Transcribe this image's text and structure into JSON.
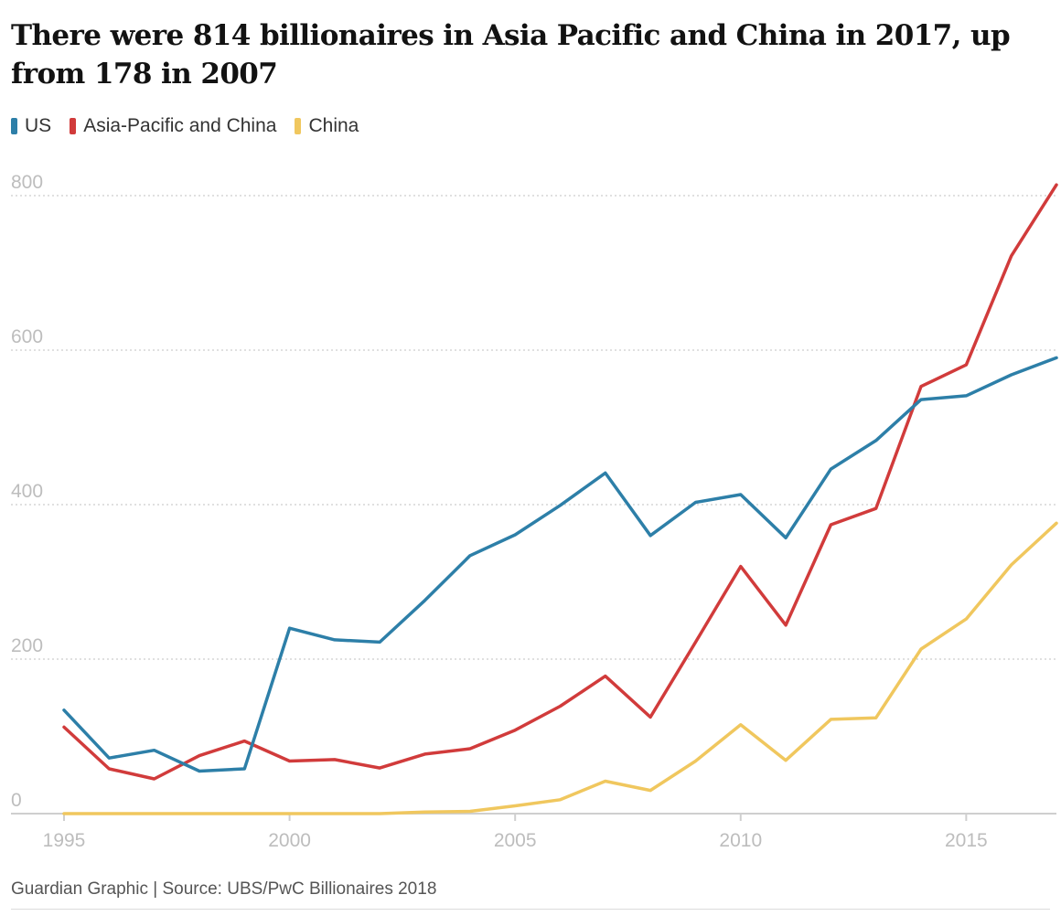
{
  "title": "There were 814 billionaires in Asia Pacific and China in 2017, up from 178 in 2007",
  "source": "Guardian Graphic | Source: UBS/PwC Billionaires 2018",
  "chart_data": {
    "type": "line",
    "title": "There were 814 billionaires in Asia Pacific and China in 2017, up from 178 in 2007",
    "xlabel": "",
    "ylabel": "",
    "x": [
      1995,
      1996,
      1997,
      1998,
      1999,
      2000,
      2001,
      2002,
      2003,
      2004,
      2005,
      2006,
      2007,
      2008,
      2009,
      2010,
      2011,
      2012,
      2013,
      2014,
      2015,
      2016,
      2017
    ],
    "xlim": [
      1995,
      2017
    ],
    "ylim": [
      0,
      800
    ],
    "xticks": [
      1995,
      2000,
      2005,
      2010,
      2015
    ],
    "yticks": [
      0,
      200,
      400,
      600,
      800
    ],
    "grid": "horizontal dotted",
    "legend": "top-left",
    "series": [
      {
        "name": "US",
        "color": "#2d7fa8",
        "values": [
          134,
          72,
          82,
          55,
          58,
          240,
          225,
          222,
          276,
          334,
          361,
          399,
          441,
          360,
          403,
          413,
          357,
          446,
          483,
          536,
          541,
          568,
          590
        ]
      },
      {
        "name": "Asia-Pacific and China",
        "color": "#d13b3b",
        "values": [
          112,
          58,
          45,
          75,
          94,
          68,
          70,
          59,
          77,
          84,
          108,
          139,
          178,
          125,
          222,
          320,
          244,
          374,
          395,
          553,
          581,
          722,
          814
        ]
      },
      {
        "name": "China",
        "color": "#f0c75e",
        "values": [
          0,
          0,
          0,
          0,
          0,
          0,
          0,
          0,
          2,
          3,
          10,
          18,
          42,
          30,
          68,
          115,
          69,
          122,
          124,
          213,
          252,
          322,
          376
        ]
      }
    ]
  }
}
